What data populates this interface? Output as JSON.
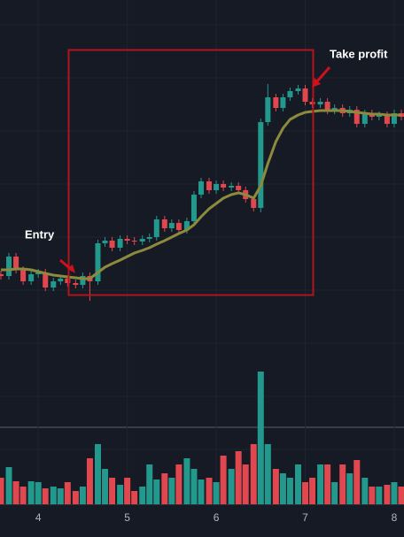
{
  "chart_data": {
    "type": "candlestick",
    "x": [
      3.58,
      3.67,
      3.75,
      3.83,
      3.92,
      4,
      4.08,
      4.17,
      4.25,
      4.33,
      4.42,
      4.5,
      4.58,
      4.67,
      4.75,
      4.83,
      4.92,
      5,
      5.08,
      5.17,
      5.25,
      5.33,
      5.42,
      5.5,
      5.58,
      5.67,
      5.75,
      5.83,
      5.92,
      6,
      6.08,
      6.17,
      6.25,
      6.33,
      6.42,
      6.5,
      6.58,
      6.67,
      6.75,
      6.83,
      6.92,
      7,
      7.08,
      7.17,
      7.25,
      7.33,
      7.42,
      7.5,
      7.58,
      7.67,
      7.75,
      7.83,
      7.92,
      8,
      8.08
    ],
    "open": [
      90,
      88,
      110,
      95,
      82,
      90,
      92,
      75,
      82,
      85,
      80,
      78,
      88,
      82,
      125,
      128,
      120,
      130,
      128,
      127,
      130,
      132,
      152,
      142,
      148,
      140,
      150,
      180,
      195,
      185,
      192,
      188,
      190,
      185,
      175,
      165,
      262,
      290,
      278,
      290,
      297,
      300,
      285,
      282,
      285,
      275,
      278,
      272,
      276,
      260,
      272,
      268,
      270,
      260,
      272
    ],
    "high": [
      94,
      114,
      114,
      99,
      94,
      96,
      96,
      86,
      89,
      89,
      84,
      92,
      92,
      129,
      132,
      132,
      134,
      134,
      132,
      134,
      136,
      156,
      156,
      152,
      152,
      154,
      184,
      199,
      199,
      196,
      196,
      194,
      194,
      189,
      179,
      266,
      305,
      294,
      294,
      301,
      304,
      304,
      289,
      289,
      289,
      282,
      282,
      280,
      280,
      276,
      276,
      274,
      274,
      276,
      276
    ],
    "low": [
      84,
      84,
      91,
      78,
      78,
      86,
      71,
      71,
      78,
      76,
      74,
      74,
      60,
      78,
      121,
      116,
      116,
      124,
      123,
      123,
      126,
      128,
      138,
      138,
      136,
      136,
      146,
      176,
      181,
      181,
      184,
      184,
      181,
      171,
      161,
      160,
      258,
      274,
      274,
      286,
      293,
      281,
      278,
      278,
      271,
      271,
      268,
      268,
      256,
      256,
      264,
      264,
      256,
      256,
      264
    ],
    "close": [
      88,
      110,
      95,
      82,
      90,
      92,
      75,
      82,
      85,
      80,
      78,
      88,
      82,
      125,
      128,
      120,
      130,
      128,
      127,
      130,
      132,
      152,
      142,
      148,
      140,
      150,
      180,
      195,
      185,
      192,
      188,
      190,
      185,
      175,
      165,
      262,
      290,
      278,
      290,
      297,
      300,
      285,
      282,
      285,
      275,
      278,
      272,
      276,
      260,
      272,
      268,
      270,
      260,
      272,
      268
    ],
    "ma": [
      95,
      95,
      96,
      96,
      95,
      93,
      91,
      89,
      88,
      87,
      86,
      85,
      85,
      92,
      98,
      102,
      106,
      110,
      114,
      117,
      120,
      124,
      128,
      132,
      136,
      140,
      146,
      155,
      164,
      170,
      176,
      180,
      182,
      180,
      176,
      190,
      215,
      240,
      255,
      265,
      270,
      273,
      274,
      275,
      275,
      275,
      275,
      274,
      273,
      272,
      271,
      271,
      270,
      270,
      270
    ],
    "ma_color": "#8c8a3c",
    "volume": {
      "values": [
        30,
        42,
        26,
        20,
        26,
        25,
        18,
        20,
        18,
        25,
        15,
        20,
        52,
        68,
        40,
        30,
        22,
        30,
        15,
        20,
        45,
        28,
        35,
        30,
        45,
        52,
        40,
        28,
        30,
        25,
        55,
        40,
        60,
        45,
        68,
        150,
        68,
        40,
        35,
        30,
        45,
        25,
        30,
        45,
        45,
        25,
        45,
        35,
        50,
        30,
        20,
        20,
        22,
        25,
        20
      ],
      "ylim": [
        0,
        300
      ]
    },
    "up_color": "#22998c",
    "down_color": "#e0474f",
    "xlim": [
      3.57,
      8.11
    ],
    "xticks": [
      4,
      5,
      6,
      7,
      8
    ],
    "ylim": [
      -170,
      400
    ],
    "grid": true,
    "annotations": [
      "Entry",
      "Take profit"
    ]
  }
}
